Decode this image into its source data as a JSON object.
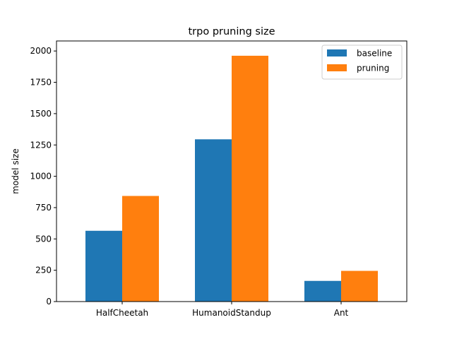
{
  "chart_data": {
    "type": "bar",
    "title": "trpo pruning size",
    "xlabel": "",
    "ylabel": "model size",
    "categories": [
      "HalfCheetah",
      "HumanoidStandup",
      "Ant"
    ],
    "series": [
      {
        "name": "baseline",
        "values": [
          565,
          1295,
          165
        ],
        "color": "#1f77b4"
      },
      {
        "name": "pruning",
        "values": [
          843,
          1962,
          245
        ],
        "color": "#ff7f0e"
      }
    ],
    "ylim": [
      0,
      2080
    ],
    "yticks": [
      0,
      250,
      500,
      750,
      1000,
      1250,
      1500,
      1750,
      2000
    ],
    "grid": false,
    "legend_position": "top-right"
  }
}
